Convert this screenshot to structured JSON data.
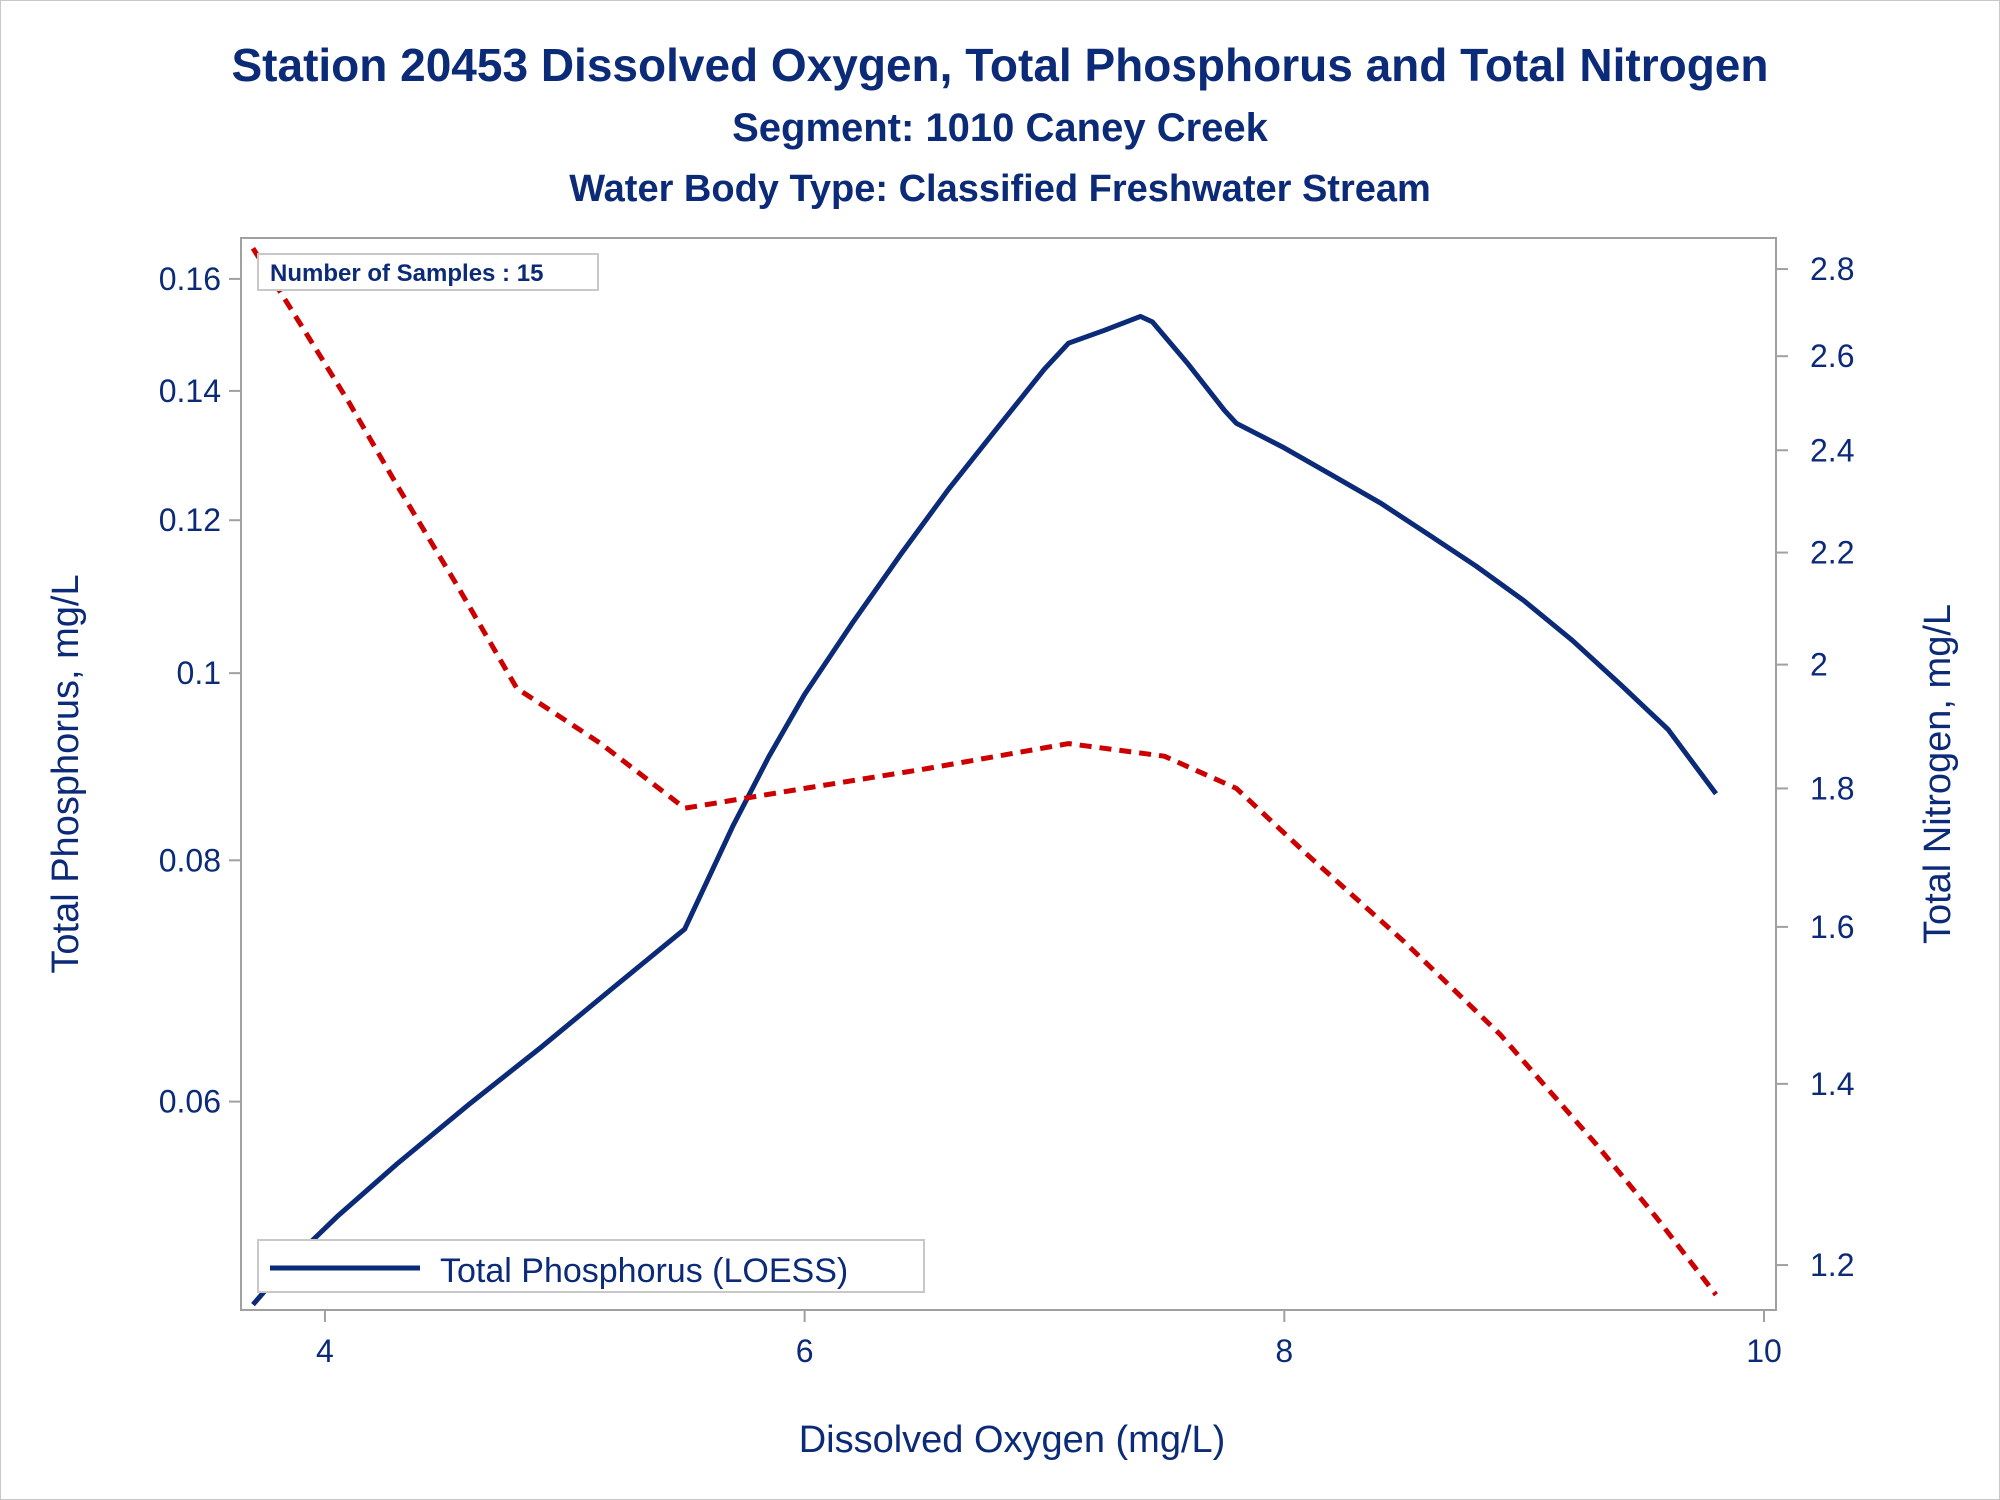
{
  "chart_data": {
    "type": "line",
    "title": "Station 20453  Dissolved Oxygen, Total Phosphorus and Total Nitrogen",
    "subtitle": "Segment: 1010  Caney Creek",
    "subtitle2": "Water Body Type: Classified Freshwater Stream",
    "xlabel": "Dissolved Oxygen (mg/L)",
    "ylabel": "Total Phosphorus, mg/L",
    "y2label": "Total Nitrogen, mg/L",
    "xlim": [
      3.65,
      10.05
    ],
    "ylim": [
      0.0468,
      0.168
    ],
    "y2lim": [
      1.155,
      2.875
    ],
    "y_scale": "log",
    "y2_scale": "log",
    "x_ticks": [
      "4",
      "6",
      "8",
      "10"
    ],
    "y_ticks": [
      "0.06",
      "0.08",
      "0.1",
      "0.12",
      "0.14",
      "0.16"
    ],
    "y2_ticks": [
      "1.2",
      "1.4",
      "1.6",
      "1.8",
      "2",
      "2.2",
      "2.4",
      "2.6",
      "2.8"
    ],
    "inset": "Number of Samples : 15",
    "legend_position": "bottom-left",
    "series": [
      {
        "name": "Total Phosphorus (LOESS)",
        "axis": "left",
        "color": "#0b2a78",
        "style": "solid",
        "points": [
          [
            3.7,
            0.0471
          ],
          [
            3.85,
            0.0495
          ],
          [
            4.05,
            0.0523
          ],
          [
            4.3,
            0.0557
          ],
          [
            4.6,
            0.0598
          ],
          [
            4.9,
            0.064
          ],
          [
            5.2,
            0.0687
          ],
          [
            5.5,
            0.0737
          ],
          [
            5.7,
            0.0833
          ],
          [
            5.85,
            0.0905
          ],
          [
            6.0,
            0.0975
          ],
          [
            6.2,
            0.1062
          ],
          [
            6.4,
            0.1152
          ],
          [
            6.6,
            0.1245
          ],
          [
            6.8,
            0.1338
          ],
          [
            7.0,
            0.1437
          ],
          [
            7.1,
            0.1482
          ],
          [
            7.25,
            0.1505
          ],
          [
            7.4,
            0.153
          ],
          [
            7.45,
            0.152
          ],
          [
            7.6,
            0.1445
          ],
          [
            7.75,
            0.1368
          ],
          [
            7.8,
            0.1347
          ],
          [
            8.0,
            0.1308
          ],
          [
            8.2,
            0.1266
          ],
          [
            8.4,
            0.1225
          ],
          [
            8.6,
            0.118
          ],
          [
            8.8,
            0.1136
          ],
          [
            9.0,
            0.109
          ],
          [
            9.2,
            0.104
          ],
          [
            9.4,
            0.0987
          ],
          [
            9.6,
            0.0935
          ],
          [
            9.8,
            0.0866
          ]
        ]
      },
      {
        "name": "",
        "axis": "right",
        "color": "#cc0000",
        "style": "dashed",
        "points": [
          [
            3.7,
            2.85
          ],
          [
            3.9,
            2.67
          ],
          [
            4.1,
            2.5
          ],
          [
            4.3,
            2.33
          ],
          [
            4.55,
            2.14
          ],
          [
            4.8,
            1.96
          ],
          [
            5.15,
            1.87
          ],
          [
            5.5,
            1.77
          ],
          [
            6.0,
            1.8
          ],
          [
            6.5,
            1.83
          ],
          [
            7.1,
            1.87
          ],
          [
            7.5,
            1.85
          ],
          [
            7.8,
            1.8
          ],
          [
            8.1,
            1.7
          ],
          [
            8.5,
            1.58
          ],
          [
            8.9,
            1.46
          ],
          [
            9.3,
            1.33
          ],
          [
            9.55,
            1.25
          ],
          [
            9.8,
            1.17
          ]
        ]
      }
    ]
  }
}
